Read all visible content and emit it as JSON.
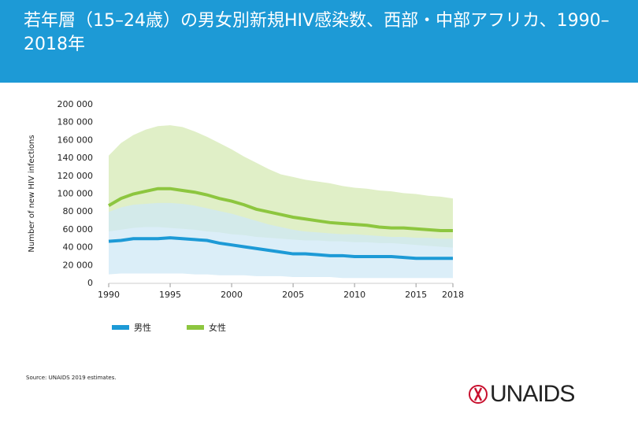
{
  "chart_data": {
    "type": "area-line",
    "title": "若年層（15–24歳）の男女別新規HIV感染数、西部・中部アフリカ、1990–2018年",
    "y_label": "Number of new HIV infections",
    "source": "Source: UNAIDS 2019 estimates.",
    "logo": "UNAIDS",
    "x": [
      1990,
      1991,
      1992,
      1993,
      1994,
      1995,
      1996,
      1997,
      1998,
      1999,
      2000,
      2001,
      2002,
      2003,
      2004,
      2005,
      2006,
      2007,
      2008,
      2009,
      2010,
      2011,
      2012,
      2013,
      2014,
      2015,
      2016,
      2017,
      2018
    ],
    "xlim": [
      1990,
      2018
    ],
    "xticks": [
      1990,
      1995,
      2000,
      2005,
      2010,
      2015,
      2018
    ],
    "ylim": [
      0,
      200000
    ],
    "yticks": [
      0,
      {
        "value": 20000,
        "label": "20 000"
      },
      {
        "value": 40000,
        "label": "40 000"
      },
      {
        "value": 60000,
        "label": "60 000"
      },
      {
        "value": 80000,
        "label": "80 000"
      },
      {
        "value": 100000,
        "label": "100 000"
      },
      {
        "value": 120000,
        "label": "120 000"
      },
      {
        "value": 140000,
        "label": "140 000"
      },
      {
        "value": 160000,
        "label": "160 000"
      },
      {
        "value": 180000,
        "label": "180 000"
      },
      {
        "value": 200000,
        "label": "200 000"
      }
    ],
    "series": [
      {
        "name": "女性",
        "color": "#8dc63f",
        "band_color": "#d6e9b4",
        "values": [
          87000,
          95000,
          100000,
          103000,
          106000,
          106000,
          104000,
          102000,
          99000,
          95000,
          92000,
          88000,
          83000,
          80000,
          77000,
          74000,
          72000,
          70000,
          68000,
          67000,
          66000,
          65000,
          63000,
          62000,
          62000,
          61000,
          60000,
          59000,
          59000
        ],
        "upper": [
          143000,
          157000,
          166000,
          172000,
          176000,
          177000,
          175000,
          170000,
          164000,
          157000,
          150000,
          142000,
          135000,
          128000,
          122000,
          119000,
          116000,
          114000,
          112000,
          109000,
          107000,
          106000,
          104000,
          103000,
          101000,
          100000,
          98000,
          97000,
          95000
        ],
        "lower": [
          58000,
          60000,
          62000,
          63000,
          63000,
          62000,
          61000,
          60000,
          58000,
          57000,
          55000,
          54000,
          52000,
          51000,
          50000,
          49000,
          48000,
          48000,
          47000,
          47000,
          46000,
          46000,
          45000,
          45000,
          44000,
          43000,
          42000,
          41000,
          40000
        ]
      },
      {
        "name": "男性",
        "color": "#1d9ad6",
        "band_color": "#cfe8f6",
        "values": [
          47000,
          48000,
          50000,
          50000,
          50000,
          51000,
          50000,
          49000,
          48000,
          45000,
          43000,
          41000,
          39000,
          37000,
          35000,
          33000,
          33000,
          32000,
          31000,
          31000,
          30000,
          30000,
          30000,
          30000,
          29000,
          28000,
          28000,
          28000,
          28000
        ],
        "upper": [
          80000,
          85000,
          88000,
          89000,
          90000,
          90000,
          89000,
          87000,
          84000,
          81000,
          78000,
          74000,
          70000,
          66000,
          63000,
          60000,
          58000,
          57000,
          56000,
          55000,
          55000,
          54000,
          53000,
          52000,
          52000,
          51000,
          51000,
          50000,
          50000
        ],
        "lower": [
          10000,
          11000,
          11000,
          11000,
          11000,
          11000,
          11000,
          10000,
          10000,
          9000,
          9000,
          9000,
          8000,
          8000,
          8000,
          7000,
          7000,
          7000,
          7000,
          6000,
          6000,
          6000,
          6000,
          6000,
          6000,
          6000,
          6000,
          6000,
          6000
        ]
      }
    ]
  }
}
